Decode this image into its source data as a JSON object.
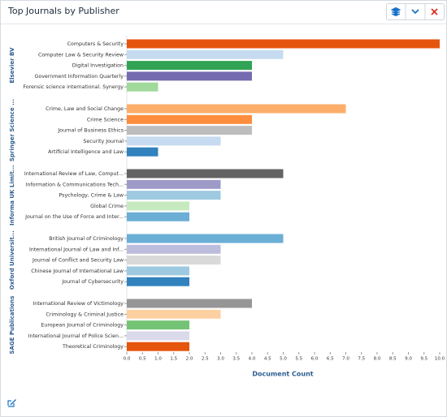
{
  "panel_title": "Top Journals by Publisher",
  "chart_data": {
    "type": "bar",
    "orientation": "horizontal",
    "x_label": "Document Count",
    "xlim": [
      0,
      10
    ],
    "xticks": [
      {
        "value": 0,
        "label": "0.0"
      },
      0.5,
      {
        "value": 1,
        "label": "1.0"
      },
      1.5,
      {
        "value": 2,
        "label": "2.0"
      },
      2.5,
      {
        "value": 3,
        "label": "3.0"
      },
      3.5,
      {
        "value": 4,
        "label": "4.0"
      },
      4.5,
      {
        "value": 5,
        "label": "5.0"
      },
      5.5,
      {
        "value": 6,
        "label": "6.0"
      },
      6.5,
      {
        "value": 7,
        "label": "7.0"
      },
      7.5,
      {
        "value": 8,
        "label": "8.0"
      },
      8.5,
      {
        "value": 9,
        "label": "9.0"
      },
      9.5,
      {
        "value": 10,
        "label": "10.0"
      }
    ],
    "groups": [
      {
        "name": "Elsevier BV",
        "categories": [
          "Computers & Security",
          "Computer Law & Security Review",
          "Digital Investigation",
          "Government Information Quarterly",
          "Forensic science international. Synergy"
        ],
        "values": [
          10,
          5,
          4,
          4,
          1
        ],
        "colors": [
          "#e6550d",
          "#c6dbef",
          "#31a354",
          "#756bb1",
          "#a1d99b"
        ]
      },
      {
        "name": "Springer Science ...",
        "categories": [
          "Crime, Law and Social Change",
          "Crime Science",
          "Journal of Business Ethics",
          "Security Journal",
          "Artificial Intelligence and Law"
        ],
        "values": [
          7,
          4,
          4,
          3,
          1
        ],
        "colors": [
          "#fdae6b",
          "#fd8d3c",
          "#bdbdbd",
          "#c6dbef",
          "#3182bd"
        ]
      },
      {
        "name": "Informa UK Limit...",
        "categories": [
          "International Review of Law, Comput...",
          "Information & Communications Tech...",
          "Psychology, Crime & Law",
          "Global Crime",
          "Journal on the Use of Force and Inter..."
        ],
        "values": [
          5,
          3,
          3,
          2,
          2
        ],
        "colors": [
          "#636363",
          "#9e9ac8",
          "#9ecae1",
          "#c7e9c0",
          "#6baed6"
        ]
      },
      {
        "name": "Oxford Universit...",
        "categories": [
          "British Journal of Criminology",
          "International Journal of Law and Inf...",
          "Journal of Conflict and Security Law",
          "Chinese Journal of International Law",
          "Journal of Cybersecurity"
        ],
        "values": [
          5,
          3,
          3,
          2,
          2
        ],
        "colors": [
          "#6baed6",
          "#bcbddc",
          "#d9d9d9",
          "#9ecae1",
          "#3182bd"
        ]
      },
      {
        "name": "SAGE Publications",
        "categories": [
          "International Review of Victimology",
          "Criminology & Criminal Justice",
          "European Journal of Criminology",
          "International Journal of Police Scien...",
          "Theoretical Criminology"
        ],
        "values": [
          4,
          3,
          2,
          2,
          2
        ],
        "colors": [
          "#969696",
          "#fdd0a2",
          "#74c476",
          "#dadaeb",
          "#e6550d"
        ]
      }
    ]
  }
}
